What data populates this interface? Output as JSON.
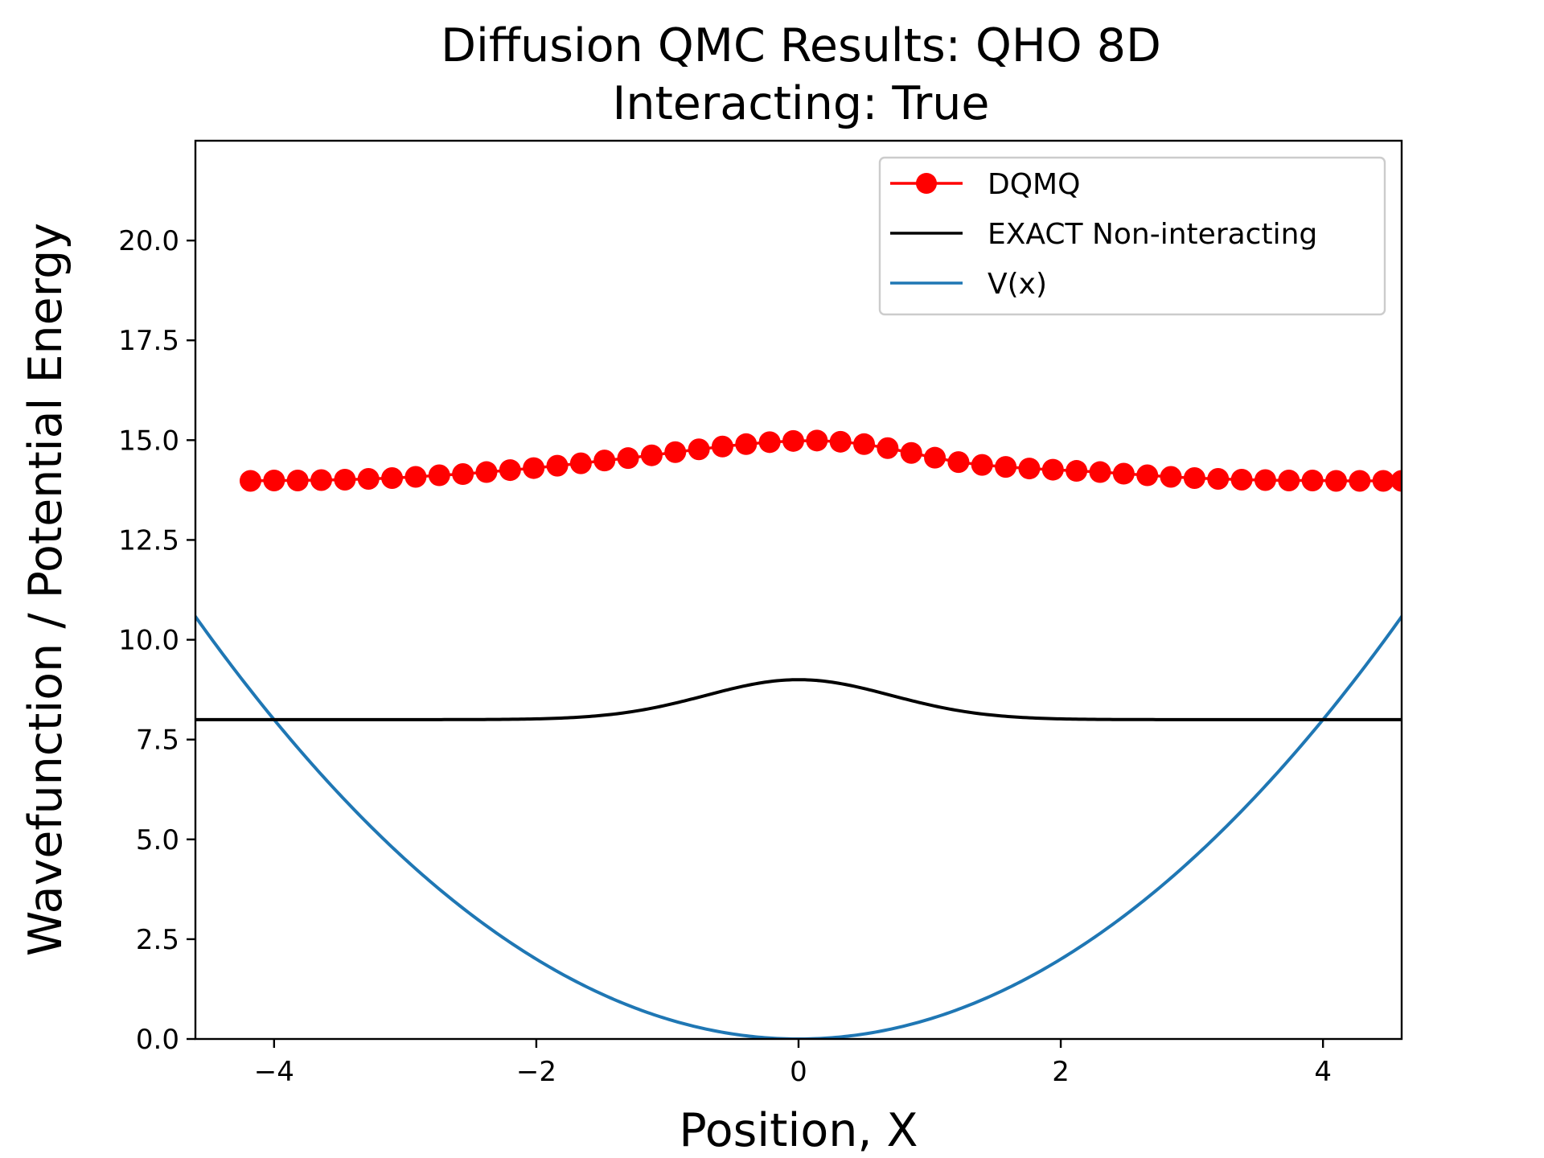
{
  "chart_data": {
    "type": "line",
    "title": "Diffusion QMC Results: QHO 8D",
    "subtitle": "Interacting: True",
    "xlabel": "Position, X",
    "ylabel": "Wavefunction / Potential Energy",
    "xlim": [
      -4.6,
      4.6
    ],
    "ylim": [
      0,
      22.5
    ],
    "xticks": [
      -4,
      -2,
      0,
      2,
      4
    ],
    "xtick_labels": [
      "−4",
      "−2",
      "0",
      "2",
      "4"
    ],
    "yticks": [
      0,
      2.5,
      5,
      7.5,
      10,
      12.5,
      15,
      17.5,
      20
    ],
    "ytick_labels": [
      "0.0",
      "2.5",
      "5.0",
      "7.5",
      "10.0",
      "12.5",
      "15.0",
      "17.5",
      "20.0"
    ],
    "grid": false,
    "legend_position": "top-right",
    "series": [
      {
        "name": "DQMQ",
        "style": "line-markers",
        "color": "#ff0000",
        "x": [
          -4.18,
          -4.0,
          -3.82,
          -3.64,
          -3.46,
          -3.28,
          -3.1,
          -2.92,
          -2.74,
          -2.56,
          -2.38,
          -2.2,
          -2.02,
          -1.84,
          -1.66,
          -1.48,
          -1.3,
          -1.12,
          -0.94,
          -0.76,
          -0.58,
          -0.4,
          -0.22,
          -0.04,
          0.14,
          0.32,
          0.5,
          0.68,
          0.86,
          1.04,
          1.22,
          1.4,
          1.58,
          1.76,
          1.94,
          2.12,
          2.3,
          2.48,
          2.66,
          2.84,
          3.02,
          3.2,
          3.38,
          3.56,
          3.74,
          3.92,
          4.1,
          4.28,
          4.46,
          4.6
        ],
        "y": [
          13.98,
          13.99,
          13.99,
          14.0,
          14.01,
          14.03,
          14.05,
          14.08,
          14.12,
          14.15,
          14.2,
          14.25,
          14.3,
          14.36,
          14.42,
          14.49,
          14.55,
          14.62,
          14.7,
          14.77,
          14.84,
          14.9,
          14.95,
          14.98,
          14.99,
          14.96,
          14.9,
          14.8,
          14.68,
          14.56,
          14.45,
          14.38,
          14.33,
          14.29,
          14.26,
          14.23,
          14.2,
          14.16,
          14.12,
          14.08,
          14.05,
          14.03,
          14.01,
          14.0,
          13.99,
          13.99,
          13.98,
          13.98,
          13.98,
          13.98
        ]
      },
      {
        "name": "EXACT Non-interacting",
        "style": "line",
        "color": "#000000",
        "baseline": 8.0,
        "amplitude": 1.0
      },
      {
        "name": "V(x)",
        "style": "line",
        "color": "#1f77b4",
        "formula": "0.5*x^2"
      }
    ]
  }
}
